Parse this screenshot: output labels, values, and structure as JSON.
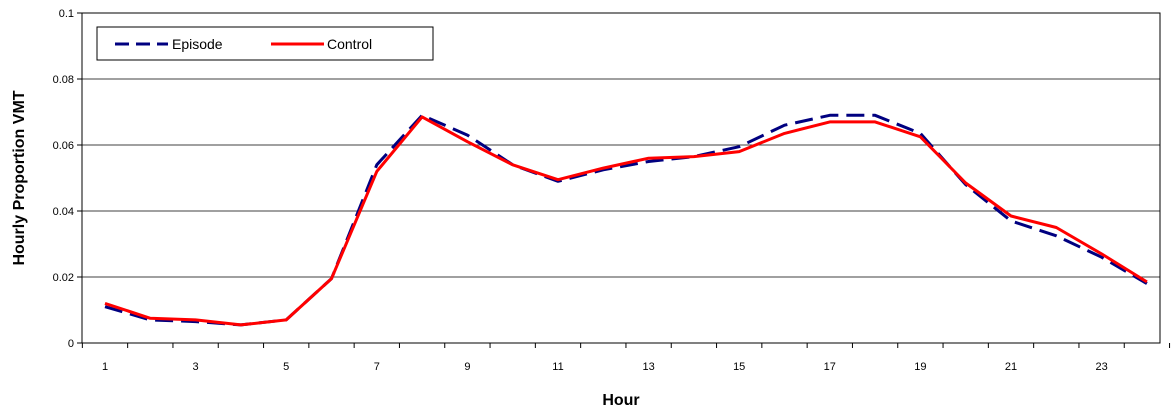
{
  "chart_data": {
    "type": "line",
    "title": "",
    "xlabel": "Hour",
    "ylabel": "Hourly Proportion VMT",
    "x": [
      1,
      2,
      3,
      4,
      5,
      6,
      7,
      8,
      9,
      10,
      11,
      12,
      13,
      14,
      15,
      16,
      17,
      18,
      19,
      20,
      21,
      22,
      23,
      24
    ],
    "xticks": [
      "1",
      "3",
      "5",
      "7",
      "9",
      "11",
      "13",
      "15",
      "17",
      "19",
      "21",
      "23"
    ],
    "yticks": [
      "0",
      "0.02",
      "0.04",
      "0.06",
      "0.08",
      "0.1"
    ],
    "ylim": [
      0,
      0.1
    ],
    "grid": true,
    "legend": "top-left",
    "series": [
      {
        "name": "Episode",
        "color": "#000080",
        "style": "dashed",
        "values": [
          0.011,
          0.007,
          0.0065,
          0.0055,
          0.007,
          0.0195,
          0.054,
          0.069,
          0.063,
          0.054,
          0.049,
          0.0525,
          0.055,
          0.0565,
          0.0595,
          0.066,
          0.069,
          0.069,
          0.0635,
          0.048,
          0.037,
          0.0325,
          0.026,
          0.018
        ]
      },
      {
        "name": "Control",
        "color": "#ff0000",
        "style": "solid",
        "values": [
          0.012,
          0.0075,
          0.007,
          0.0055,
          0.007,
          0.0195,
          0.052,
          0.0685,
          0.061,
          0.054,
          0.0495,
          0.053,
          0.056,
          0.0565,
          0.058,
          0.0635,
          0.067,
          0.067,
          0.0625,
          0.0485,
          0.0385,
          0.035,
          0.027,
          0.0185
        ]
      }
    ]
  }
}
